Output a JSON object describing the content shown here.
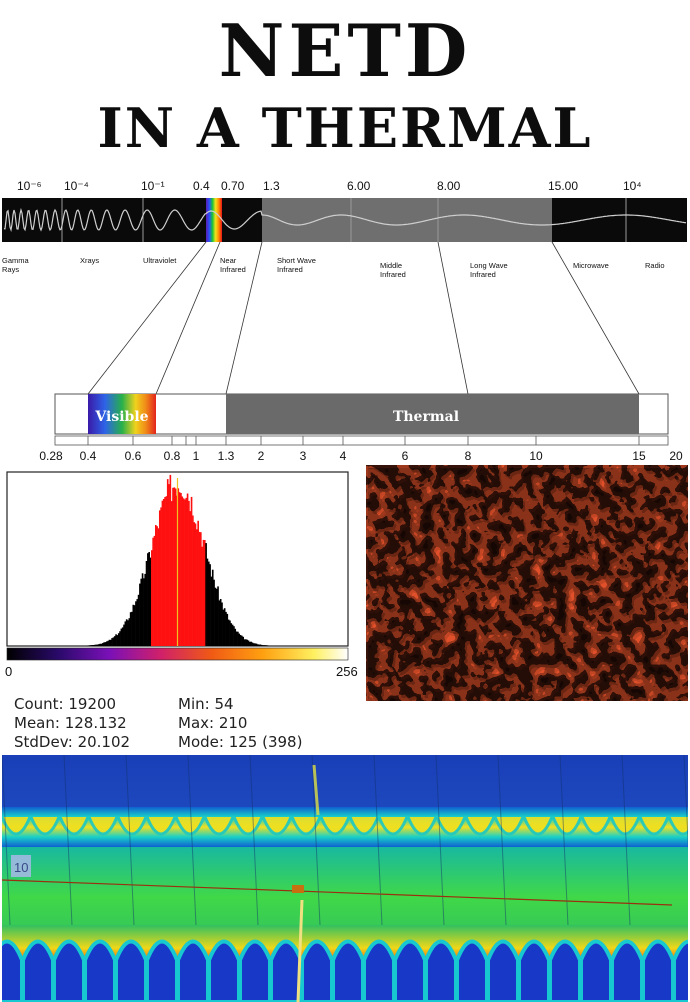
{
  "titles": {
    "line1": "NETD",
    "line2": "IN A THERMAL"
  },
  "spectrum": {
    "scale_labels": [
      "10⁻⁶",
      "10⁻⁴",
      "10⁻¹",
      "0.4",
      "0.70",
      "1.3",
      "6.00",
      "8.00",
      "15.00",
      "10⁴"
    ],
    "band_names": [
      [
        "Gamma",
        "Rays"
      ],
      [
        "Xrays"
      ],
      [
        "Ultraviolet"
      ],
      [
        "Near",
        "Infrared"
      ],
      [
        "Short Wave",
        "Infrared"
      ],
      [
        "Middle",
        "Infrared"
      ],
      [
        "Long Wave",
        "Infrared"
      ],
      [
        "Microwave"
      ],
      [
        "Radio"
      ]
    ]
  },
  "zoom_band": {
    "visible_label": "Visible",
    "thermal_label": "Thermal",
    "ticks": [
      "0.28",
      "0.4",
      "0.6",
      "0.8",
      "1",
      "1.3",
      "2",
      "3",
      "4",
      "6",
      "8",
      "10",
      "15",
      "20"
    ]
  },
  "histogram": {
    "axis_min": "0",
    "axis_max": "256",
    "stats": {
      "count": "Count: 19200",
      "mean": "Mean: 128.132",
      "stddev": "StdDev: 20.102",
      "min": "Min: 54",
      "max": "Max: 210",
      "mode": "Mode: 125 (398)"
    }
  },
  "thermal_image": {
    "marker_label": "10"
  }
}
